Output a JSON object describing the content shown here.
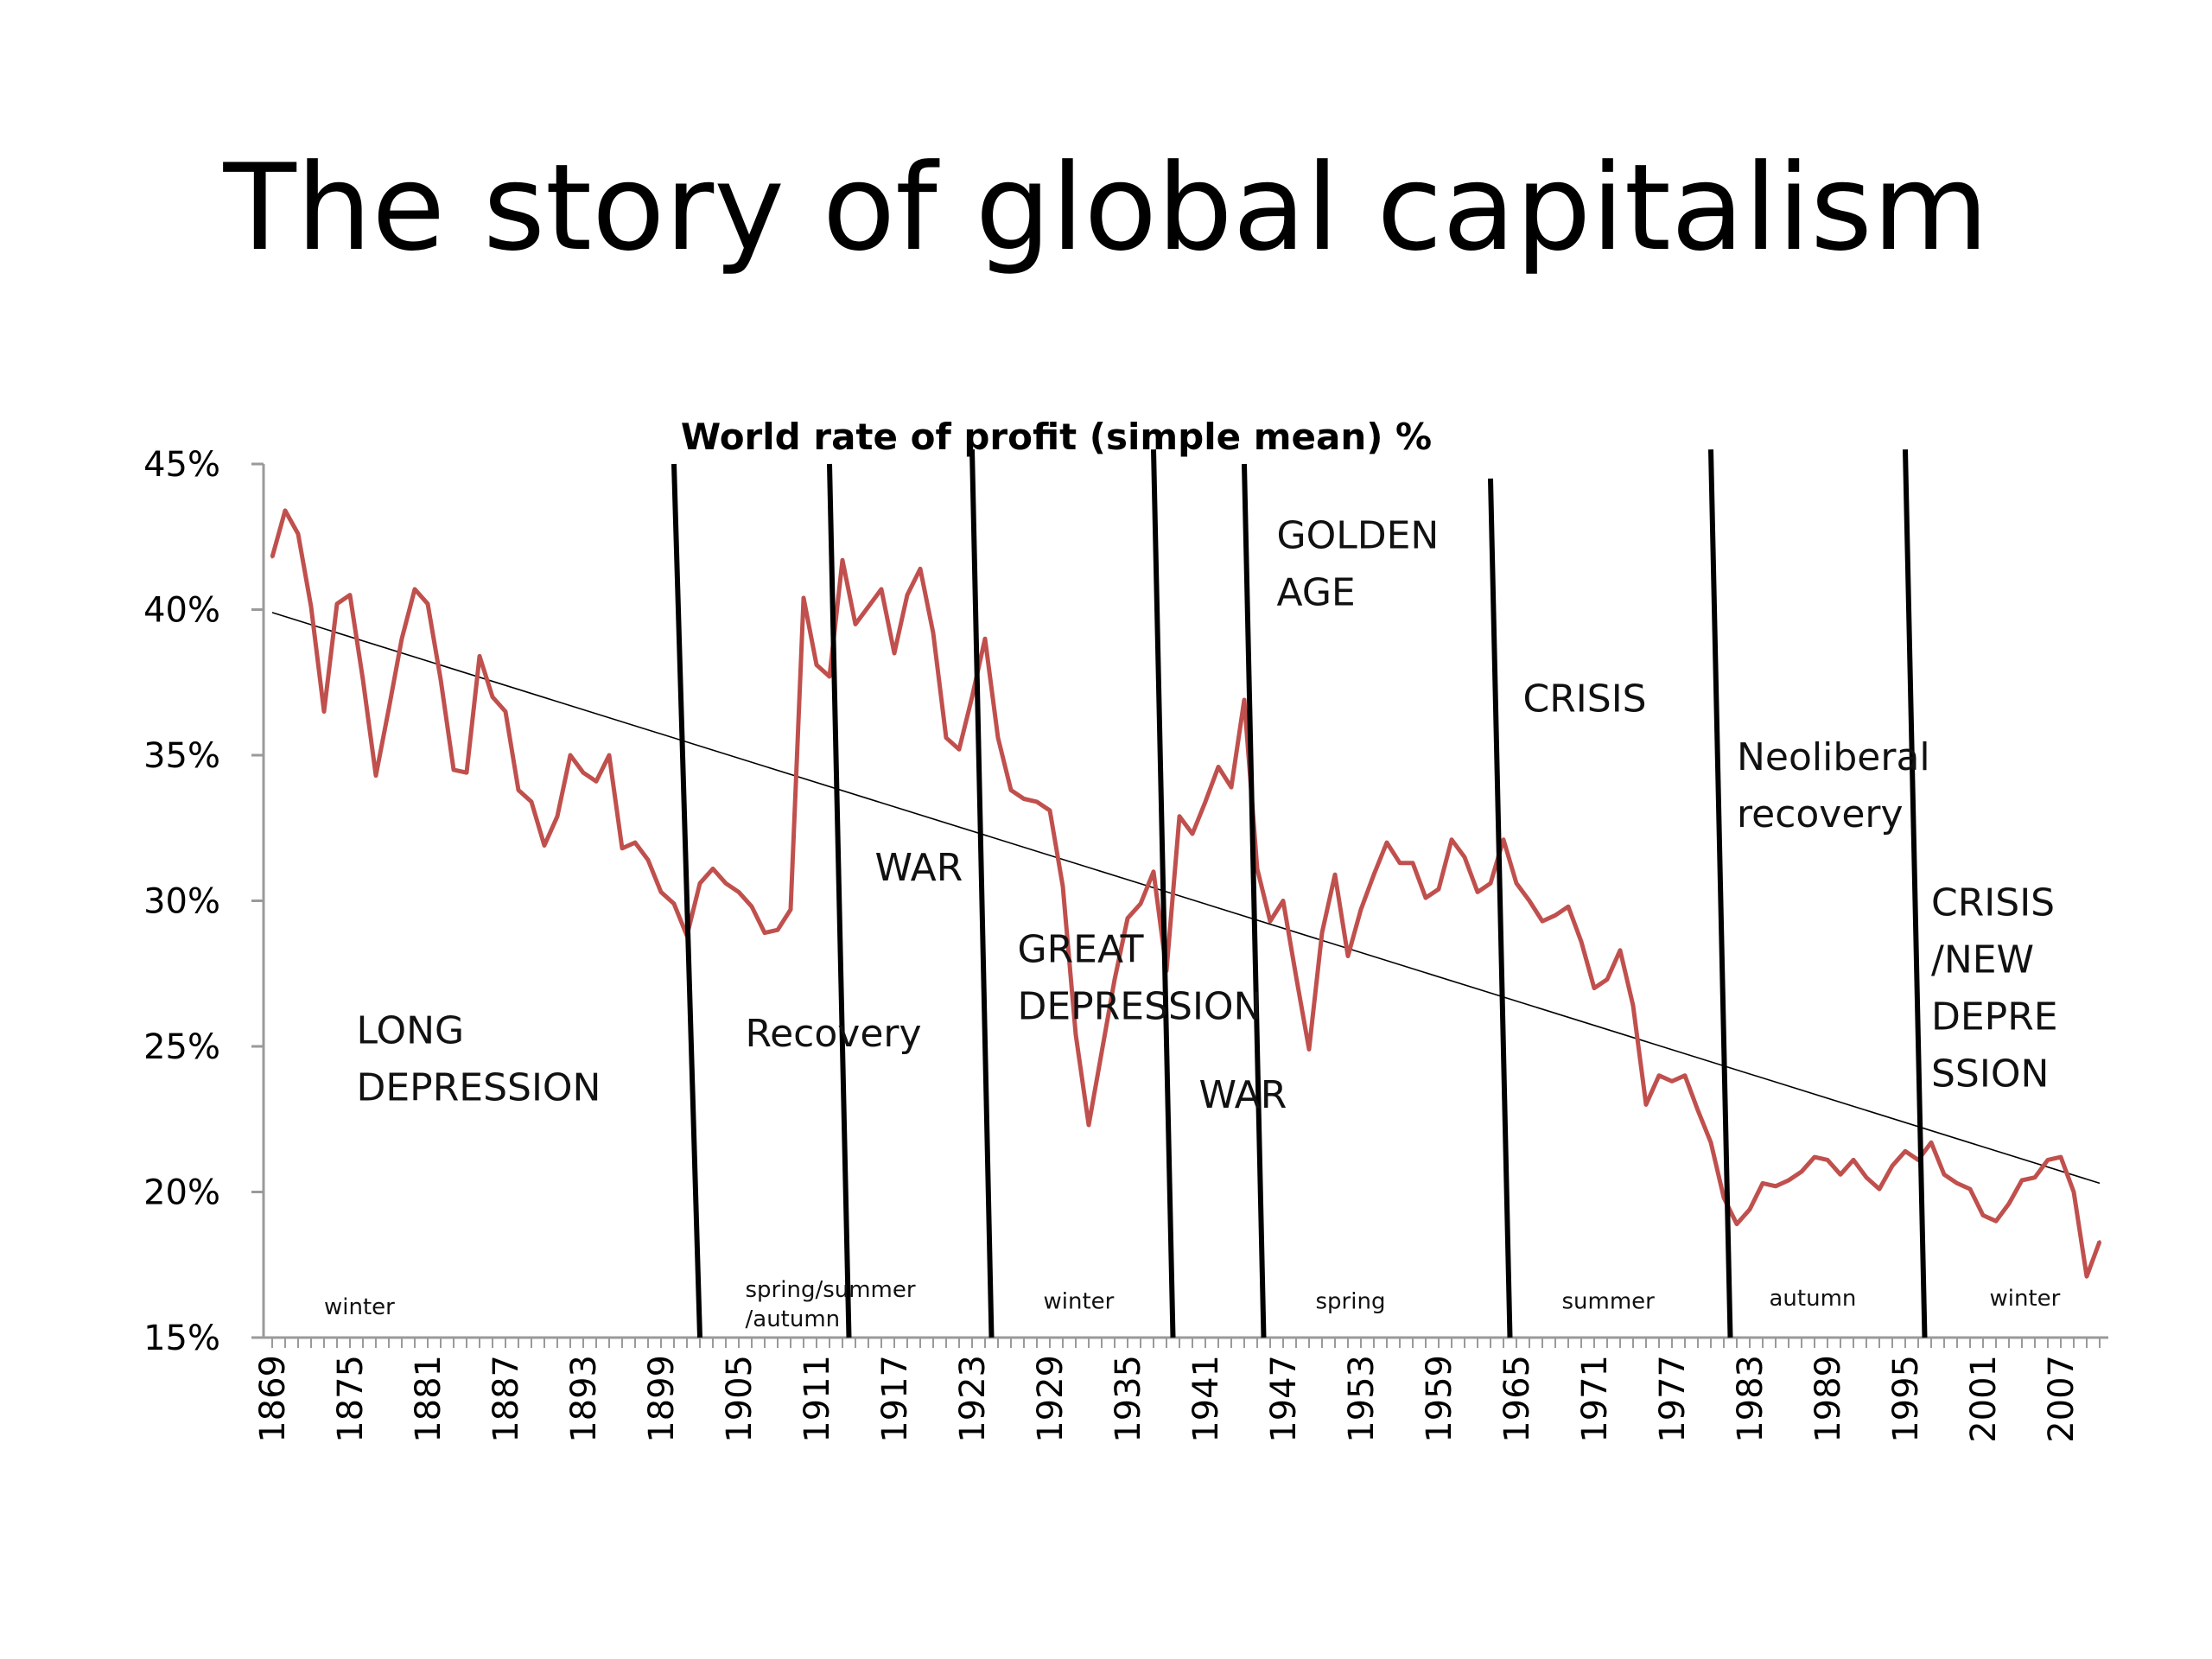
{
  "slide": {
    "title": "The story of global capitalism"
  },
  "chart_data": {
    "type": "line",
    "title": "World rate of profit (simple mean) %",
    "xlabel": "",
    "ylabel": "",
    "xlim": [
      1869,
      2010
    ],
    "ylim": [
      15,
      45
    ],
    "y_ticks": [
      "15%",
      "20%",
      "25%",
      "30%",
      "35%",
      "40%",
      "45%"
    ],
    "x_ticks": [
      "1869",
      "1875",
      "1881",
      "1887",
      "1893",
      "1899",
      "1905",
      "1911",
      "1917",
      "1923",
      "1929",
      "1935",
      "1941",
      "1947",
      "1953",
      "1959",
      "1965",
      "1971",
      "1977",
      "1983",
      "1989",
      "1995",
      "2001",
      "2007"
    ],
    "colors": {
      "series": "#c0504d",
      "trend": "#000000",
      "dividers": "#000000"
    },
    "series": [
      {
        "name": "",
        "x": [
          1869,
          1870,
          1871,
          1872,
          1873,
          1874,
          1875,
          1876,
          1877,
          1878,
          1879,
          1880,
          1881,
          1882,
          1883,
          1884,
          1885,
          1886,
          1887,
          1888,
          1889,
          1890,
          1891,
          1892,
          1893,
          1894,
          1895,
          1896,
          1897,
          1898,
          1899,
          1900,
          1901,
          1902,
          1903,
          1904,
          1905,
          1906,
          1907,
          1908,
          1909,
          1910,
          1911,
          1912,
          1913,
          1914,
          1915,
          1916,
          1917,
          1918,
          1919,
          1920,
          1921,
          1922,
          1923,
          1924,
          1925,
          1926,
          1927,
          1928,
          1929,
          1930,
          1931,
          1932,
          1933,
          1934,
          1935,
          1936,
          1937,
          1938,
          1939,
          1940,
          1941,
          1942,
          1943,
          1944,
          1945,
          1946,
          1947,
          1948,
          1949,
          1950,
          1951,
          1952,
          1953,
          1954,
          1955,
          1956,
          1957,
          1958,
          1959,
          1960,
          1961,
          1962,
          1963,
          1964,
          1965,
          1966,
          1967,
          1968,
          1969,
          1970,
          1971,
          1972,
          1973,
          1974,
          1975,
          1976,
          1977,
          1978,
          1979,
          1980,
          1981,
          1982,
          1983,
          1984,
          1985,
          1986,
          1987,
          1988,
          1989,
          1990,
          1991,
          1992,
          1993,
          1994,
          1995,
          1996,
          1997,
          1998,
          1999,
          2000,
          2001,
          2002,
          2003,
          2004,
          2005,
          2006,
          2007,
          2008,
          2009,
          2010
        ],
        "values": [
          41.8,
          43.4,
          42.6,
          40.1,
          36.5,
          40.2,
          40.5,
          37.6,
          34.3,
          36.6,
          39.0,
          40.7,
          40.2,
          37.6,
          34.5,
          34.4,
          38.4,
          37.0,
          36.5,
          33.8,
          33.4,
          31.9,
          32.9,
          35.0,
          34.4,
          34.1,
          35.0,
          31.8,
          32.0,
          31.4,
          30.3,
          29.9,
          28.8,
          30.6,
          31.1,
          30.6,
          30.3,
          29.8,
          28.9,
          29.0,
          29.7,
          40.4,
          38.1,
          37.7,
          41.7,
          39.5,
          40.1,
          40.7,
          38.5,
          40.5,
          41.4,
          39.2,
          35.6,
          35.2,
          37.0,
          39.0,
          35.6,
          33.8,
          33.5,
          33.4,
          33.1,
          30.5,
          25.4,
          22.3,
          24.8,
          27.3,
          29.4,
          29.9,
          31.0,
          27.6,
          32.9,
          32.3,
          33.4,
          34.6,
          33.9,
          36.9,
          31.1,
          29.3,
          30.0,
          27.4,
          24.9,
          28.9,
          30.9,
          28.1,
          29.7,
          30.9,
          32.0,
          31.3,
          31.3,
          30.1,
          30.4,
          32.1,
          31.5,
          30.3,
          30.6,
          32.1,
          30.6,
          30.0,
          29.3,
          29.5,
          29.8,
          28.6,
          27.0,
          27.3,
          28.3,
          26.4,
          23.0,
          24.0,
          23.8,
          24.0,
          22.8,
          21.7,
          19.8,
          18.9,
          19.4,
          20.3,
          20.2,
          20.4,
          20.7,
          21.2,
          21.1,
          20.6,
          21.1,
          20.5,
          20.1,
          20.9,
          21.4,
          21.1,
          21.7,
          20.6,
          20.3,
          20.1,
          19.2,
          19.0,
          19.6,
          20.4,
          20.5,
          21.1,
          21.2,
          20.0,
          17.1,
          18.3
        ]
      }
    ],
    "trend_line": {
      "x": [
        1869,
        2010
      ],
      "y": [
        39.9,
        20.3
      ]
    },
    "dividers": [
      {
        "x_top": 1900,
        "x_bottom": 1902,
        "y_top": 45
      },
      {
        "x_top": 1912,
        "x_bottom": 1913.5,
        "y_top": 45
      },
      {
        "x_top": 1923,
        "x_bottom": 1924.5,
        "y_top": 45.5
      },
      {
        "x_top": 1937,
        "x_bottom": 1938.5,
        "y_top": 45.5
      },
      {
        "x_top": 1944,
        "x_bottom": 1945.5,
        "y_top": 45
      },
      {
        "x_top": 1963,
        "x_bottom": 1964.5,
        "y_top": 44.5
      },
      {
        "x_top": 1980,
        "x_bottom": 1981.5,
        "y_top": 45.5
      },
      {
        "x_top": 1995,
        "x_bottom": 1996.5,
        "y_top": 45.5
      }
    ],
    "annotations": [
      {
        "lines": [
          "LONG",
          "DEPRESSION"
        ],
        "x": 1875.5,
        "y": 25.1,
        "kind": "era"
      },
      {
        "lines": [
          "Recovery"
        ],
        "x": 1905.5,
        "y": 25.0,
        "kind": "era"
      },
      {
        "lines": [
          "WAR"
        ],
        "x": 1915.5,
        "y": 30.7,
        "kind": "era"
      },
      {
        "lines": [
          "GREAT",
          "DEPRESSION"
        ],
        "x": 1926.5,
        "y": 27.9,
        "kind": "era"
      },
      {
        "lines": [
          "WAR"
        ],
        "x": 1940.5,
        "y": 22.9,
        "kind": "era"
      },
      {
        "lines": [
          "GOLDEN",
          "AGE"
        ],
        "x": 1946.5,
        "y": 42.1,
        "kind": "era"
      },
      {
        "lines": [
          "CRISIS"
        ],
        "x": 1965.5,
        "y": 36.5,
        "kind": "era"
      },
      {
        "lines": [
          "Neoliberal",
          "recovery"
        ],
        "x": 1982,
        "y": 34.5,
        "kind": "era"
      },
      {
        "lines": [
          "CRISIS",
          "/NEW",
          "DEPRE",
          "SSION"
        ],
        "x": 1997,
        "y": 29.5,
        "kind": "era"
      },
      {
        "lines": [
          "winter"
        ],
        "x": 1873,
        "y": 15.8,
        "kind": "season"
      },
      {
        "lines": [
          "spring/summer",
          "/autumn"
        ],
        "x": 1905.5,
        "y": 16.4,
        "kind": "season"
      },
      {
        "lines": [
          "winter"
        ],
        "x": 1928.5,
        "y": 16.0,
        "kind": "season"
      },
      {
        "lines": [
          "spring"
        ],
        "x": 1949.5,
        "y": 16.0,
        "kind": "season"
      },
      {
        "lines": [
          "summer"
        ],
        "x": 1968.5,
        "y": 16.0,
        "kind": "season"
      },
      {
        "lines": [
          "autumn"
        ],
        "x": 1984.5,
        "y": 16.1,
        "kind": "season"
      },
      {
        "lines": [
          "winter"
        ],
        "x": 2001.5,
        "y": 16.1,
        "kind": "season"
      }
    ]
  }
}
